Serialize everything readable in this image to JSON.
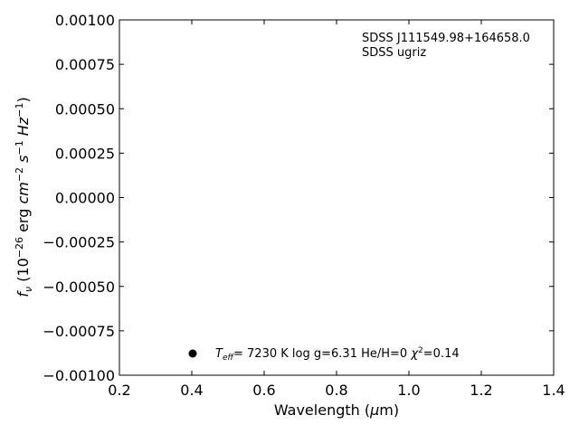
{
  "chart_data": {
    "type": "scatter",
    "xlabel": "Wavelength (μm)",
    "ylabel": "f_ν (10⁻²⁶ erg cm⁻² s⁻¹ Hz⁻¹)",
    "xlim": [
      0.2,
      1.4
    ],
    "ylim": [
      -0.001,
      0.001
    ],
    "x_ticks": [
      0.2,
      0.4,
      0.6,
      0.8,
      1.0,
      1.2,
      1.4
    ],
    "x_tick_labels": [
      "0.2",
      "0.4",
      "0.6",
      "0.8",
      "1.0",
      "1.2",
      "1.4"
    ],
    "y_ticks": [
      0.001,
      0.00075,
      0.0005,
      0.00025,
      0,
      -0.00025,
      -0.0005,
      -0.00075,
      -0.001
    ],
    "y_tick_labels": [
      "0.00100",
      "0.00075",
      "0.00050",
      "0.00025",
      "0.00000",
      "−0.00025",
      "−0.00050",
      "−0.00075",
      "−0.00100"
    ],
    "grid": false,
    "annotations": {
      "object_name": "SDSS J111549.98+164658.0",
      "photometry": "SDSS ugriz"
    },
    "legend": {
      "placement": "bottom",
      "marker": "filled-circle",
      "teff_value": "7230 K",
      "logg": "log g=6.31",
      "composition": "He/H=0",
      "chi2_value": "=0.14"
    },
    "series": []
  }
}
